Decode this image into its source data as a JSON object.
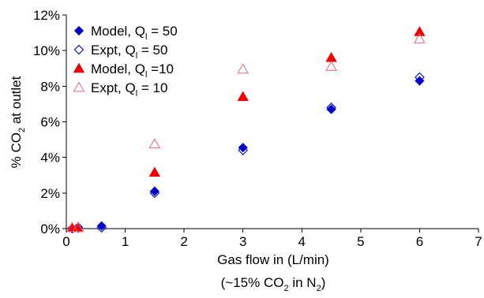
{
  "chart_data": {
    "type": "scatter",
    "xlabel_line1": "Gas flow in (L/min)",
    "xlabel_line2": {
      "prefix": "(~15% CO",
      "sub1": "2",
      "middle": " in N",
      "sub2": "2",
      "suffix": ")"
    },
    "ylabel": {
      "prefix": "% CO",
      "sub": "2",
      "suffix": " at outlet"
    },
    "xlim": [
      0,
      7
    ],
    "ylim": [
      0,
      12
    ],
    "x_ticks": [
      "0",
      "1",
      "2",
      "3",
      "4",
      "5",
      "6",
      "7"
    ],
    "y_ticks": [
      "0%",
      "2%",
      "4%",
      "6%",
      "8%",
      "10%",
      "12%"
    ],
    "legend_position": "top-left",
    "series": [
      {
        "name_prefix": "Model, Q",
        "name_sub": "l",
        "name_suffix": " = 50",
        "marker": "diamond-filled",
        "color": "#0000cc",
        "points": [
          [
            0.1,
            0.0
          ],
          [
            0.2,
            0.03
          ],
          [
            0.6,
            0.15
          ],
          [
            1.5,
            2.1
          ],
          [
            3.0,
            4.55
          ],
          [
            4.5,
            6.7
          ],
          [
            6.0,
            8.3
          ]
        ]
      },
      {
        "name_prefix": "Expt, Q",
        "name_sub": "l",
        "name_suffix": " = 50",
        "marker": "diamond-open",
        "color": "#0000cc",
        "points": [
          [
            0.1,
            0.02
          ],
          [
            0.2,
            0.08
          ],
          [
            0.6,
            0.05
          ],
          [
            1.5,
            2.0
          ],
          [
            3.0,
            4.4
          ],
          [
            4.5,
            6.8
          ],
          [
            6.0,
            8.5
          ]
        ]
      },
      {
        "name_prefix": "Model, Q",
        "name_sub": "l",
        "name_suffix": " =10",
        "marker": "triangle-filled",
        "color": "#ee0000",
        "points": [
          [
            0.1,
            0.05
          ],
          [
            0.2,
            0.05
          ],
          [
            1.5,
            3.15
          ],
          [
            3.0,
            7.4
          ],
          [
            4.5,
            9.6
          ],
          [
            6.0,
            11.05
          ]
        ]
      },
      {
        "name_prefix": "Expt, Q",
        "name_sub": "l",
        "name_suffix": " = 10",
        "marker": "triangle-open",
        "color": "#ee6677",
        "points": [
          [
            0.1,
            0.05
          ],
          [
            0.2,
            0.05
          ],
          [
            1.5,
            4.75
          ],
          [
            3.0,
            8.95
          ],
          [
            4.5,
            9.1
          ],
          [
            6.0,
            10.65
          ]
        ]
      }
    ]
  }
}
